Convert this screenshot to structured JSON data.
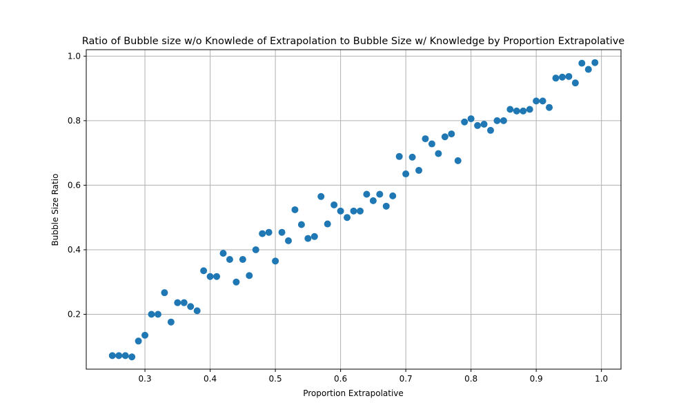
{
  "chart_data": {
    "type": "scatter",
    "title": "Ratio of Bubble size w/o Knowlede of Extrapolation to Bubble Size w/ Knowledge by Proportion Extrapolative",
    "xlabel": "Proportion Extrapolative",
    "ylabel": "Bubble Size Ratio",
    "xlim": [
      0.21,
      1.03
    ],
    "ylim": [
      0.03,
      1.02
    ],
    "xticks": [
      "0.3",
      "0.4",
      "0.5",
      "0.6",
      "0.7",
      "0.8",
      "0.9",
      "1.0"
    ],
    "yticks": [
      "0.2",
      "0.4",
      "0.6",
      "0.8",
      "1.0"
    ],
    "grid": true,
    "marker_color": "#1f77b4",
    "points": [
      {
        "x": 0.25,
        "y": 0.072
      },
      {
        "x": 0.26,
        "y": 0.072
      },
      {
        "x": 0.27,
        "y": 0.072
      },
      {
        "x": 0.28,
        "y": 0.068
      },
      {
        "x": 0.29,
        "y": 0.117
      },
      {
        "x": 0.3,
        "y": 0.135
      },
      {
        "x": 0.31,
        "y": 0.2
      },
      {
        "x": 0.32,
        "y": 0.2
      },
      {
        "x": 0.33,
        "y": 0.267
      },
      {
        "x": 0.34,
        "y": 0.176
      },
      {
        "x": 0.35,
        "y": 0.236
      },
      {
        "x": 0.36,
        "y": 0.236
      },
      {
        "x": 0.37,
        "y": 0.224
      },
      {
        "x": 0.38,
        "y": 0.211
      },
      {
        "x": 0.39,
        "y": 0.335
      },
      {
        "x": 0.4,
        "y": 0.317
      },
      {
        "x": 0.41,
        "y": 0.317
      },
      {
        "x": 0.42,
        "y": 0.389
      },
      {
        "x": 0.43,
        "y": 0.37
      },
      {
        "x": 0.44,
        "y": 0.3
      },
      {
        "x": 0.45,
        "y": 0.37
      },
      {
        "x": 0.46,
        "y": 0.32
      },
      {
        "x": 0.47,
        "y": 0.4
      },
      {
        "x": 0.48,
        "y": 0.45
      },
      {
        "x": 0.49,
        "y": 0.454
      },
      {
        "x": 0.5,
        "y": 0.365
      },
      {
        "x": 0.51,
        "y": 0.454
      },
      {
        "x": 0.52,
        "y": 0.428
      },
      {
        "x": 0.53,
        "y": 0.524
      },
      {
        "x": 0.54,
        "y": 0.478
      },
      {
        "x": 0.55,
        "y": 0.435
      },
      {
        "x": 0.56,
        "y": 0.441
      },
      {
        "x": 0.57,
        "y": 0.565
      },
      {
        "x": 0.58,
        "y": 0.48
      },
      {
        "x": 0.59,
        "y": 0.539
      },
      {
        "x": 0.6,
        "y": 0.52
      },
      {
        "x": 0.61,
        "y": 0.5
      },
      {
        "x": 0.62,
        "y": 0.52
      },
      {
        "x": 0.63,
        "y": 0.52
      },
      {
        "x": 0.64,
        "y": 0.572
      },
      {
        "x": 0.65,
        "y": 0.552
      },
      {
        "x": 0.66,
        "y": 0.572
      },
      {
        "x": 0.67,
        "y": 0.535
      },
      {
        "x": 0.68,
        "y": 0.567
      },
      {
        "x": 0.69,
        "y": 0.689
      },
      {
        "x": 0.7,
        "y": 0.635
      },
      {
        "x": 0.71,
        "y": 0.687
      },
      {
        "x": 0.72,
        "y": 0.646
      },
      {
        "x": 0.73,
        "y": 0.744
      },
      {
        "x": 0.74,
        "y": 0.728
      },
      {
        "x": 0.75,
        "y": 0.698
      },
      {
        "x": 0.76,
        "y": 0.75
      },
      {
        "x": 0.77,
        "y": 0.759
      },
      {
        "x": 0.78,
        "y": 0.676
      },
      {
        "x": 0.79,
        "y": 0.796
      },
      {
        "x": 0.8,
        "y": 0.806
      },
      {
        "x": 0.81,
        "y": 0.785
      },
      {
        "x": 0.82,
        "y": 0.789
      },
      {
        "x": 0.83,
        "y": 0.77
      },
      {
        "x": 0.84,
        "y": 0.8
      },
      {
        "x": 0.85,
        "y": 0.8
      },
      {
        "x": 0.86,
        "y": 0.835
      },
      {
        "x": 0.87,
        "y": 0.83
      },
      {
        "x": 0.88,
        "y": 0.83
      },
      {
        "x": 0.89,
        "y": 0.835
      },
      {
        "x": 0.9,
        "y": 0.861
      },
      {
        "x": 0.91,
        "y": 0.861
      },
      {
        "x": 0.92,
        "y": 0.841
      },
      {
        "x": 0.93,
        "y": 0.932
      },
      {
        "x": 0.94,
        "y": 0.935
      },
      {
        "x": 0.95,
        "y": 0.937
      },
      {
        "x": 0.96,
        "y": 0.917
      },
      {
        "x": 0.97,
        "y": 0.978
      },
      {
        "x": 0.98,
        "y": 0.959
      },
      {
        "x": 0.99,
        "y": 0.98
      }
    ]
  }
}
